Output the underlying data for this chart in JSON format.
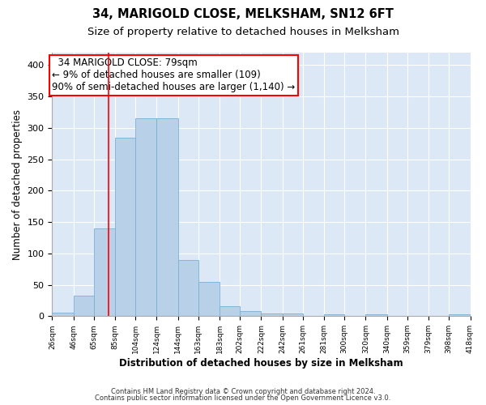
{
  "title": "34, MARIGOLD CLOSE, MELKSHAM, SN12 6FT",
  "subtitle": "Size of property relative to detached houses in Melksham",
  "xlabel": "Distribution of detached houses by size in Melksham",
  "ylabel": "Number of detached properties",
  "footnote1": "Contains HM Land Registry data © Crown copyright and database right 2024.",
  "footnote2": "Contains public sector information licensed under the Open Government Licence v3.0.",
  "annotation_line1": "34 MARIGOLD CLOSE: 79sqm",
  "annotation_line2": "← 9% of detached houses are smaller (109)",
  "annotation_line3": "90% of semi-detached houses are larger (1,140) →",
  "bar_color": "#b8d0e8",
  "bar_edge_color": "#7aafd4",
  "red_line_x": 79,
  "bin_edges": [
    26,
    46,
    65,
    85,
    104,
    124,
    144,
    163,
    183,
    202,
    222,
    242,
    261,
    281,
    300,
    320,
    340,
    359,
    379,
    398,
    418
  ],
  "bar_heights": [
    6,
    33,
    140,
    285,
    315,
    315,
    90,
    55,
    16,
    8,
    4,
    4,
    0,
    3,
    0,
    3,
    0,
    0,
    0,
    3
  ],
  "ylim": [
    0,
    420
  ],
  "yticks": [
    0,
    50,
    100,
    150,
    200,
    250,
    300,
    350,
    400
  ],
  "plot_bg_color": "#dce8f5",
  "grid_color": "#ffffff",
  "title_fontsize": 10.5,
  "subtitle_fontsize": 9.5,
  "xlabel_fontsize": 8.5,
  "ylabel_fontsize": 8.5,
  "tick_fontsize": 8,
  "xtick_fontsize": 6.5,
  "footnote_fontsize": 6,
  "annotation_fontsize": 8.5
}
